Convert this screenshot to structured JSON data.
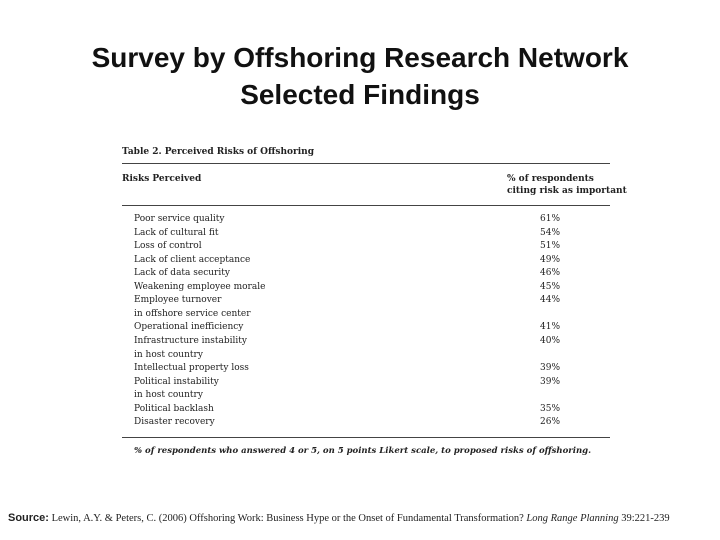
{
  "slide": {
    "title": [
      "Survey by Offshoring Research Network",
      "Selected Findings"
    ]
  },
  "table": {
    "caption": "Table 2. Perceived Risks of Offshoring",
    "header": {
      "risk": "Risks Perceived",
      "value": [
        "% of respondents",
        "citing risk as important"
      ]
    },
    "rows": [
      {
        "risk": [
          "Poor service quality"
        ],
        "value": "61%"
      },
      {
        "risk": [
          "Lack of cultural fit"
        ],
        "value": "54%"
      },
      {
        "risk": [
          "Loss of control"
        ],
        "value": "51%"
      },
      {
        "risk": [
          "Lack of client acceptance"
        ],
        "value": "49%"
      },
      {
        "risk": [
          "Lack of data security"
        ],
        "value": "46%"
      },
      {
        "risk": [
          "Weakening employee morale"
        ],
        "value": "45%"
      },
      {
        "risk": [
          "Employee turnover",
          "in offshore service center"
        ],
        "value": "44%"
      },
      {
        "risk": [
          "Operational inefficiency"
        ],
        "value": "41%"
      },
      {
        "risk": [
          "Infrastructure instability",
          "in host country"
        ],
        "value": "40%"
      },
      {
        "risk": [
          "Intellectual property loss"
        ],
        "value": "39%"
      },
      {
        "risk": [
          "Political instability",
          "in host country"
        ],
        "value": "39%"
      },
      {
        "risk": [
          "Political backlash"
        ],
        "value": "35%"
      },
      {
        "risk": [
          "Disaster recovery"
        ],
        "value": "26%"
      }
    ],
    "footnote": "% of respondents who answered 4 or 5, on 5 points Likert scale, to proposed risks of offshoring."
  },
  "source": {
    "label": "Source:",
    "text": "Lewin, A.Y. & Peters, C. (2006) Offshoring Work: Business Hype or the Onset of Fundamental Transformation?",
    "journal": "Long Range Planning",
    "pages": "39:221-239"
  }
}
